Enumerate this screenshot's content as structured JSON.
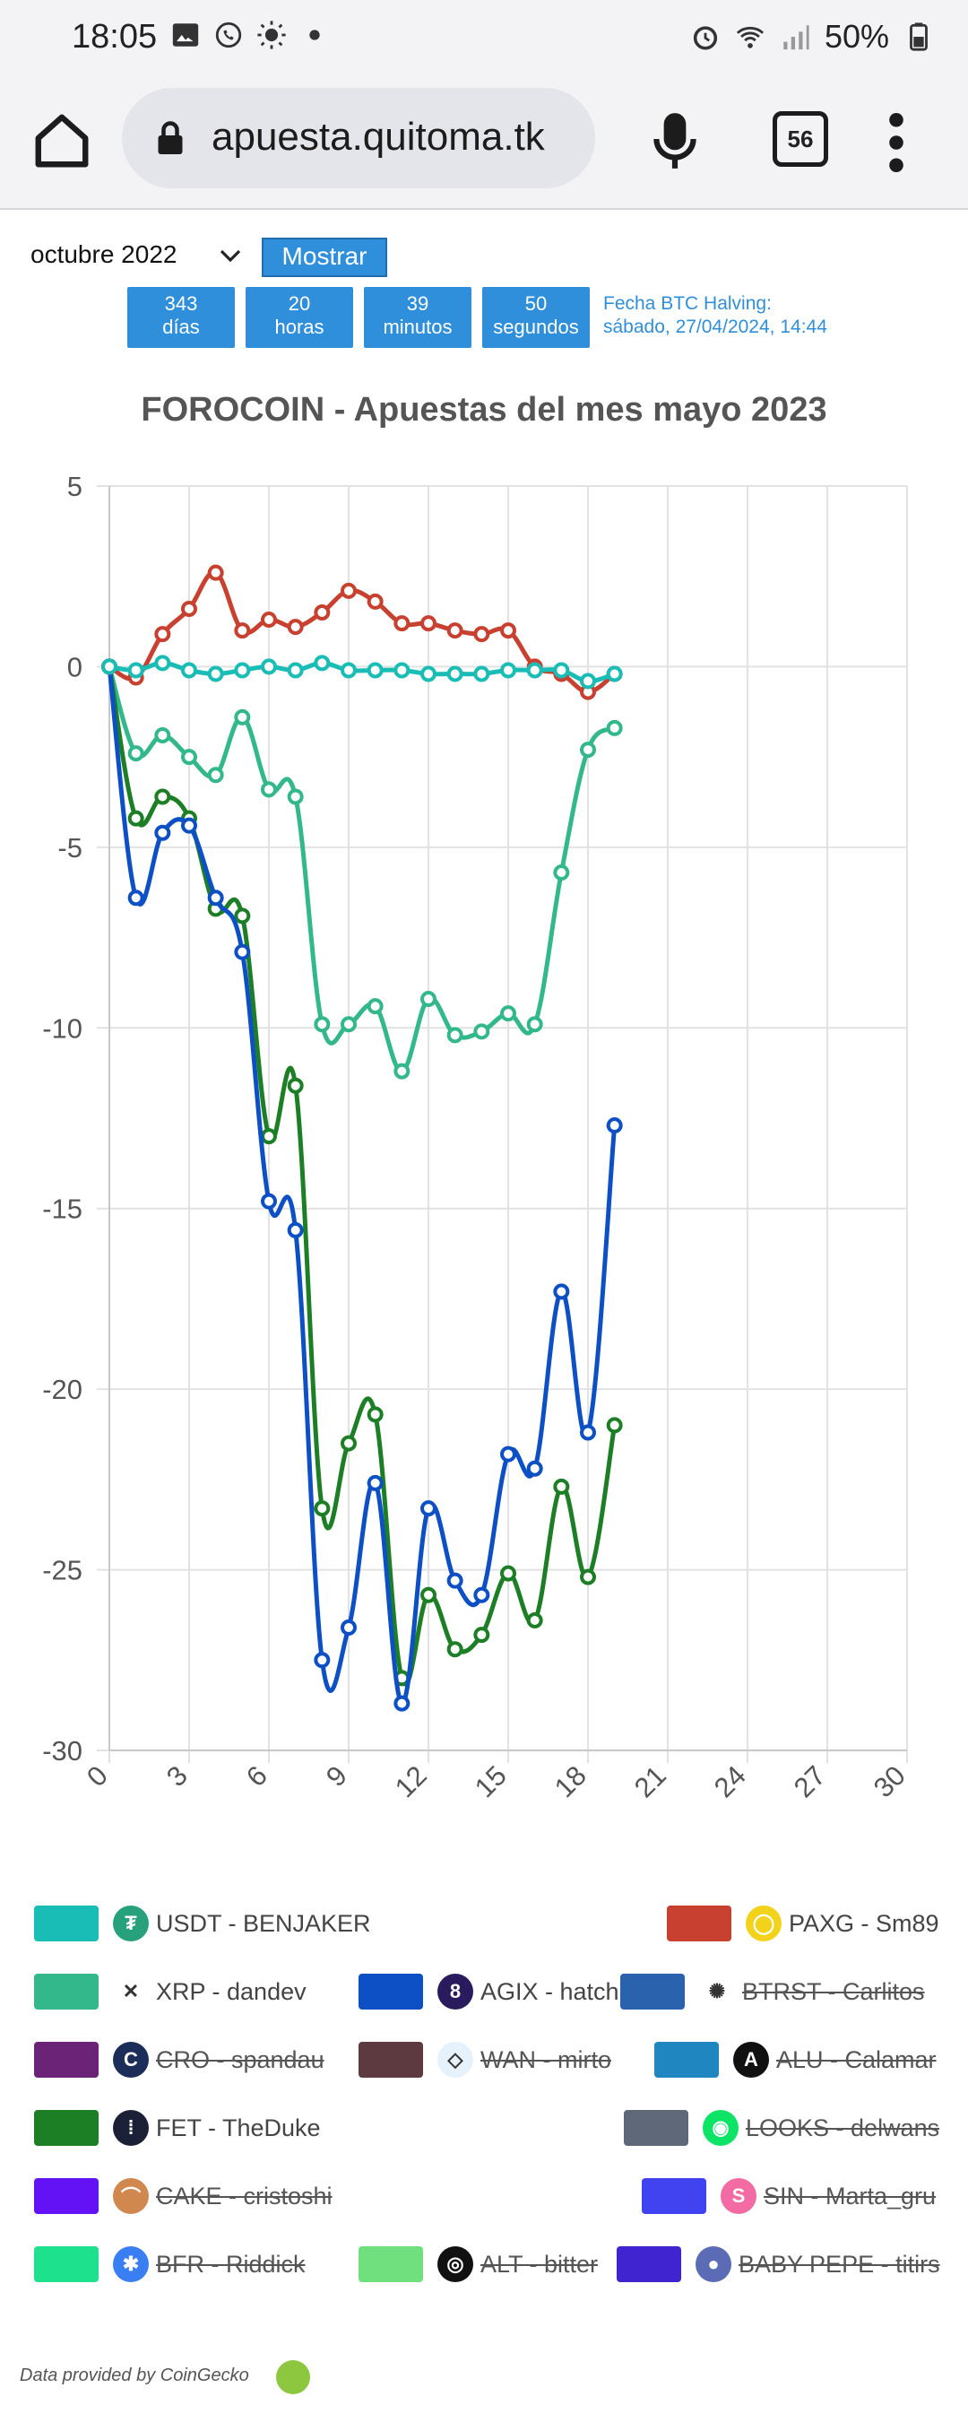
{
  "status_bar": {
    "time": "18:05",
    "battery": "50%"
  },
  "browser": {
    "url": "apuesta.quitoma.tk",
    "tab_count": "56"
  },
  "controls": {
    "month": "octubre 2022",
    "show_button": "Mostrar",
    "countdown": [
      {
        "value": "343",
        "unit": "días"
      },
      {
        "value": "20",
        "unit": "horas"
      },
      {
        "value": "39",
        "unit": "minutos"
      },
      {
        "value": "50",
        "unit": "segundos"
      }
    ],
    "halving_label": "Fecha BTC Halving:",
    "halving_date": "sábado, 27/04/2024, 14:44"
  },
  "chart_data": {
    "type": "line",
    "title": "FOROCOIN - Apuestas del mes mayo 2023",
    "xlim": [
      0,
      30
    ],
    "ylim": [
      -30,
      5
    ],
    "xticks": [
      0,
      3,
      6,
      9,
      12,
      15,
      18,
      21,
      24,
      27,
      30
    ],
    "yticks": [
      5,
      0,
      -5,
      -10,
      -15,
      -20,
      -25,
      -30
    ],
    "grid": true,
    "x": [
      0,
      1,
      2,
      3,
      4,
      5,
      6,
      7,
      8,
      9,
      10,
      11,
      12,
      13,
      14,
      15,
      16,
      17,
      18,
      19
    ],
    "series": [
      {
        "name": "USDT - BENJAKER",
        "color": "#19bdb5",
        "values": [
          0,
          -0.1,
          0.1,
          -0.1,
          -0.2,
          -0.1,
          0,
          -0.1,
          0.1,
          -0.1,
          -0.1,
          -0.1,
          -0.2,
          -0.2,
          -0.2,
          -0.1,
          -0.1,
          -0.1,
          -0.4,
          -0.2
        ]
      },
      {
        "name": "PAXG - Sm89",
        "color": "#c8402f",
        "values": [
          0,
          -0.3,
          0.9,
          1.6,
          2.6,
          1,
          1.3,
          1.1,
          1.5,
          2.1,
          1.8,
          1.2,
          1.2,
          1,
          0.9,
          1,
          0,
          -0.2,
          -0.7,
          -0.2
        ]
      },
      {
        "name": "XRP - dandev",
        "color": "#33b88c",
        "values": [
          0,
          -2.4,
          -1.9,
          -2.5,
          -3,
          -1.4,
          -3.4,
          -3.6,
          -9.9,
          -9.9,
          -9.4,
          -11.2,
          -9.2,
          -10.2,
          -10.1,
          -9.6,
          -9.9,
          -5.7,
          -2.3,
          -1.7
        ]
      },
      {
        "name": "AGIX - hatch",
        "color": "#0d4fc4",
        "values": [
          0,
          -6.4,
          -4.6,
          -4.4,
          -6.4,
          -7.9,
          -14.8,
          -15.6,
          -27.5,
          -26.6,
          -22.6,
          -28.7,
          -23.3,
          -25.3,
          -25.7,
          -21.8,
          -22.2,
          -17.3,
          -21.2,
          -12.7
        ]
      },
      {
        "name": "FET - TheDuke",
        "color": "#1d7f25",
        "values": [
          0,
          -4.2,
          -3.6,
          -4.2,
          -6.7,
          -6.9,
          -13,
          -11.6,
          -23.3,
          -21.5,
          -20.7,
          -28,
          -25.7,
          -27.2,
          -26.8,
          -25.1,
          -26.4,
          -22.7,
          -25.2,
          -21
        ]
      }
    ]
  },
  "legend": [
    {
      "label": "USDT - BENJAKER",
      "color": "#19bdb5",
      "icon": "tether-icon",
      "glyph": "₮",
      "icon_bg": "#26a17b",
      "struck": false
    },
    {
      "label": "PAXG - Sm89",
      "color": "#c8402f",
      "icon": "paxg-icon",
      "glyph": "◯",
      "icon_bg": "#f3d21b",
      "struck": false
    },
    {
      "label": "XRP - dandev",
      "color": "#33b88c",
      "icon": "xrp-icon",
      "glyph": "✕",
      "icon_bg": "#ffffff",
      "struck": false
    },
    {
      "label": "AGIX - hatch",
      "color": "#0d4fc4",
      "icon": "agix-icon",
      "glyph": "8",
      "icon_bg": "#2a1a5e",
      "struck": false
    },
    {
      "label": "BTRST - Carlitos",
      "color": "#2a62ad",
      "icon": "btrst-icon",
      "glyph": "✺",
      "icon_bg": "#ffffff",
      "struck": true
    },
    {
      "label": "CRO - spandau",
      "color": "#6b2377",
      "icon": "cro-icon",
      "glyph": "C",
      "icon_bg": "#1c2d5a",
      "struck": true
    },
    {
      "label": "WAN - mirto",
      "color": "#5d3a40",
      "icon": "wan-icon",
      "glyph": "◇",
      "icon_bg": "#e6f2fb",
      "struck": true
    },
    {
      "label": "ALU - Calamar",
      "color": "#2086bf",
      "icon": "alu-icon",
      "glyph": "A",
      "icon_bg": "#111111",
      "struck": true
    },
    {
      "label": "FET - TheDuke",
      "color": "#1d7f25",
      "icon": "fet-icon",
      "glyph": "⁞",
      "icon_bg": "#1b2036",
      "struck": false
    },
    {
      "label": "LOOKS - delwans",
      "color": "#5f6879",
      "icon": "looks-icon",
      "glyph": "◉",
      "icon_bg": "#0ce466",
      "struck": true
    },
    {
      "label": "CAKE - cristoshi",
      "color": "#6312f5",
      "icon": "cake-icon",
      "glyph": "⌒",
      "icon_bg": "#d1884f",
      "struck": true
    },
    {
      "label": "SIN - Marta_gru",
      "color": "#4143f0",
      "icon": "sin-icon",
      "glyph": "S",
      "icon_bg": "#f26ba3",
      "struck": true
    },
    {
      "label": "BFR - Riddick",
      "color": "#1de18d",
      "icon": "bfr-icon",
      "glyph": "✱",
      "icon_bg": "#3a7ef4",
      "struck": true
    },
    {
      "label": "ALT - bitter",
      "color": "#6fe07d",
      "icon": "alt-icon",
      "glyph": "◎",
      "icon_bg": "#111111",
      "struck": true
    },
    {
      "label": "BABY PEPE - titirs",
      "color": "#4024d0",
      "icon": "babypepe-icon",
      "glyph": "●",
      "icon_bg": "#5b6bb5",
      "struck": true
    }
  ],
  "footer": "Data provided by CoinGecko"
}
